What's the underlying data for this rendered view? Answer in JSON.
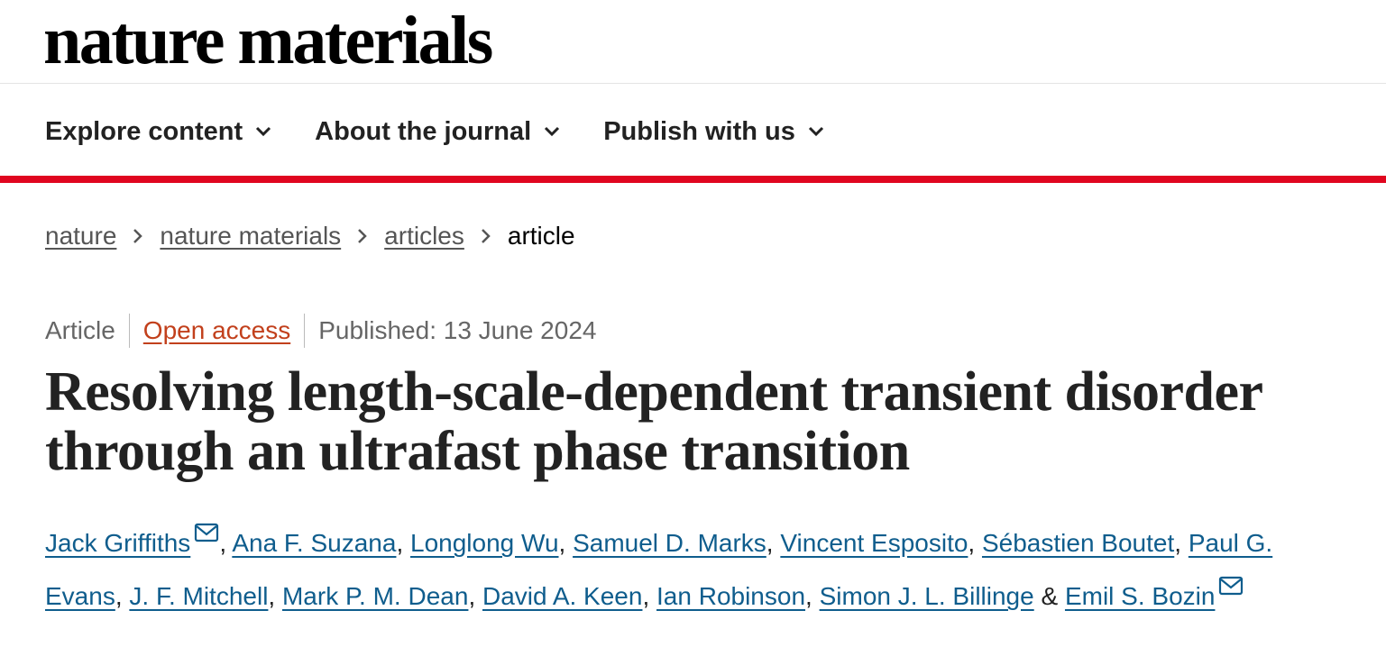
{
  "header": {
    "logo": "nature materials"
  },
  "nav": [
    "Explore content",
    "About the journal",
    "Publish with us"
  ],
  "breadcrumbs": [
    "nature",
    "nature materials",
    "articles",
    "article"
  ],
  "meta": {
    "type": "Article",
    "access": "Open access",
    "published": "Published: 13 June 2024"
  },
  "article": {
    "title": "Resolving length-scale-dependent transient disorder through an ultrafast phase transition",
    "authors": [
      {
        "name": "Jack Griffiths",
        "after": ","
      },
      {
        "name": "Ana F. Suzana",
        "after": ","
      },
      {
        "name": "Longlong Wu",
        "after": ","
      },
      {
        "name": "Samuel D. Marks",
        "after": ","
      },
      {
        "name": "Vincent Esposito",
        "after": ","
      },
      {
        "name": "Sébastien Boutet",
        "after": ","
      },
      {
        "name": "Paul G. Evans",
        "after": ","
      },
      {
        "name": "J. F. Mitchell",
        "after": ","
      },
      {
        "name": "Mark P. M. Dean",
        "after": ","
      },
      {
        "name": "David A. Keen",
        "after": ","
      },
      {
        "name": "Ian Robinson",
        "after": ","
      },
      {
        "name": "Simon J. L. Billinge",
        "after": "&"
      },
      {
        "name": "Emil S. Bozin"
      }
    ],
    "corresponding": [
      0,
      12
    ]
  }
}
